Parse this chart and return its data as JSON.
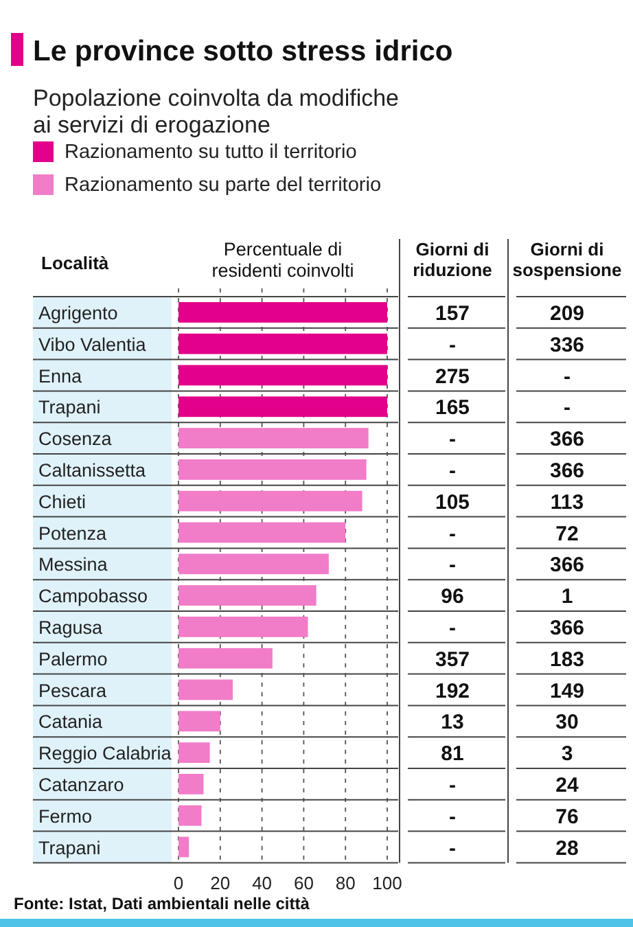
{
  "chart_data": [
    {
      "type": "bar",
      "orientation": "horizontal",
      "title": "Le province sotto stress idrico",
      "subtitle": "Popolazione coinvolta da modifiche ai servizi di erogazione",
      "ylabel": "Località",
      "xlabel": "Percentuale di residenti coinvolti",
      "categories": [
        "Agrigento",
        "Vibo Valentia",
        "Enna",
        "Trapani",
        "Cosenza",
        "Caltanissetta",
        "Chieti",
        "Potenza",
        "Messina",
        "Campobasso",
        "Ragusa",
        "Palermo",
        "Pescara",
        "Catania",
        "Reggio Calabria",
        "Catanzaro",
        "Fermo",
        "Trapani"
      ],
      "series": [
        {
          "name": "Razionamento su tutto il territorio",
          "color": "#e2008a",
          "values": [
            100,
            100,
            100,
            100,
            null,
            null,
            null,
            null,
            null,
            null,
            null,
            null,
            null,
            null,
            null,
            null,
            null,
            null
          ]
        },
        {
          "name": "Razionamento su parte del territorio",
          "color": "#f17cc8",
          "values": [
            null,
            null,
            null,
            null,
            91,
            90,
            88,
            80,
            72,
            66,
            62,
            45,
            26,
            20,
            15,
            12,
            11,
            5
          ]
        }
      ],
      "xlim": [
        0,
        100
      ],
      "xticks": [
        0,
        20,
        40,
        60,
        80,
        100
      ],
      "grid": "x",
      "legend": "top left",
      "annotations": [
        "Fonte: Istat, Dati ambientali nelle città"
      ]
    },
    {
      "type": "other",
      "title": "Giorni di riduzione",
      "categories": [
        null,
        null,
        null,
        null,
        null,
        null,
        null,
        null,
        null,
        null,
        null,
        null,
        null,
        null,
        null,
        null,
        null,
        null
      ],
      "value_labels": [
        "157",
        "-",
        "275",
        "165",
        "-",
        "-",
        "105",
        "-",
        "-",
        "96",
        "-",
        "357",
        "192",
        "13",
        "81",
        "-",
        "-",
        "-"
      ]
    },
    {
      "type": "other",
      "title": "Giorni di sospensione",
      "categories": [
        null,
        null,
        null,
        null,
        null,
        null,
        null,
        null,
        null,
        null,
        null,
        null,
        null,
        null,
        null,
        null,
        null,
        null
      ],
      "value_labels": [
        "209",
        "336",
        "-",
        "-",
        "366",
        "366",
        "113",
        "72",
        "366",
        "1",
        "366",
        "183",
        "149",
        "30",
        "3",
        "24",
        "76",
        "28"
      ]
    }
  ]
}
